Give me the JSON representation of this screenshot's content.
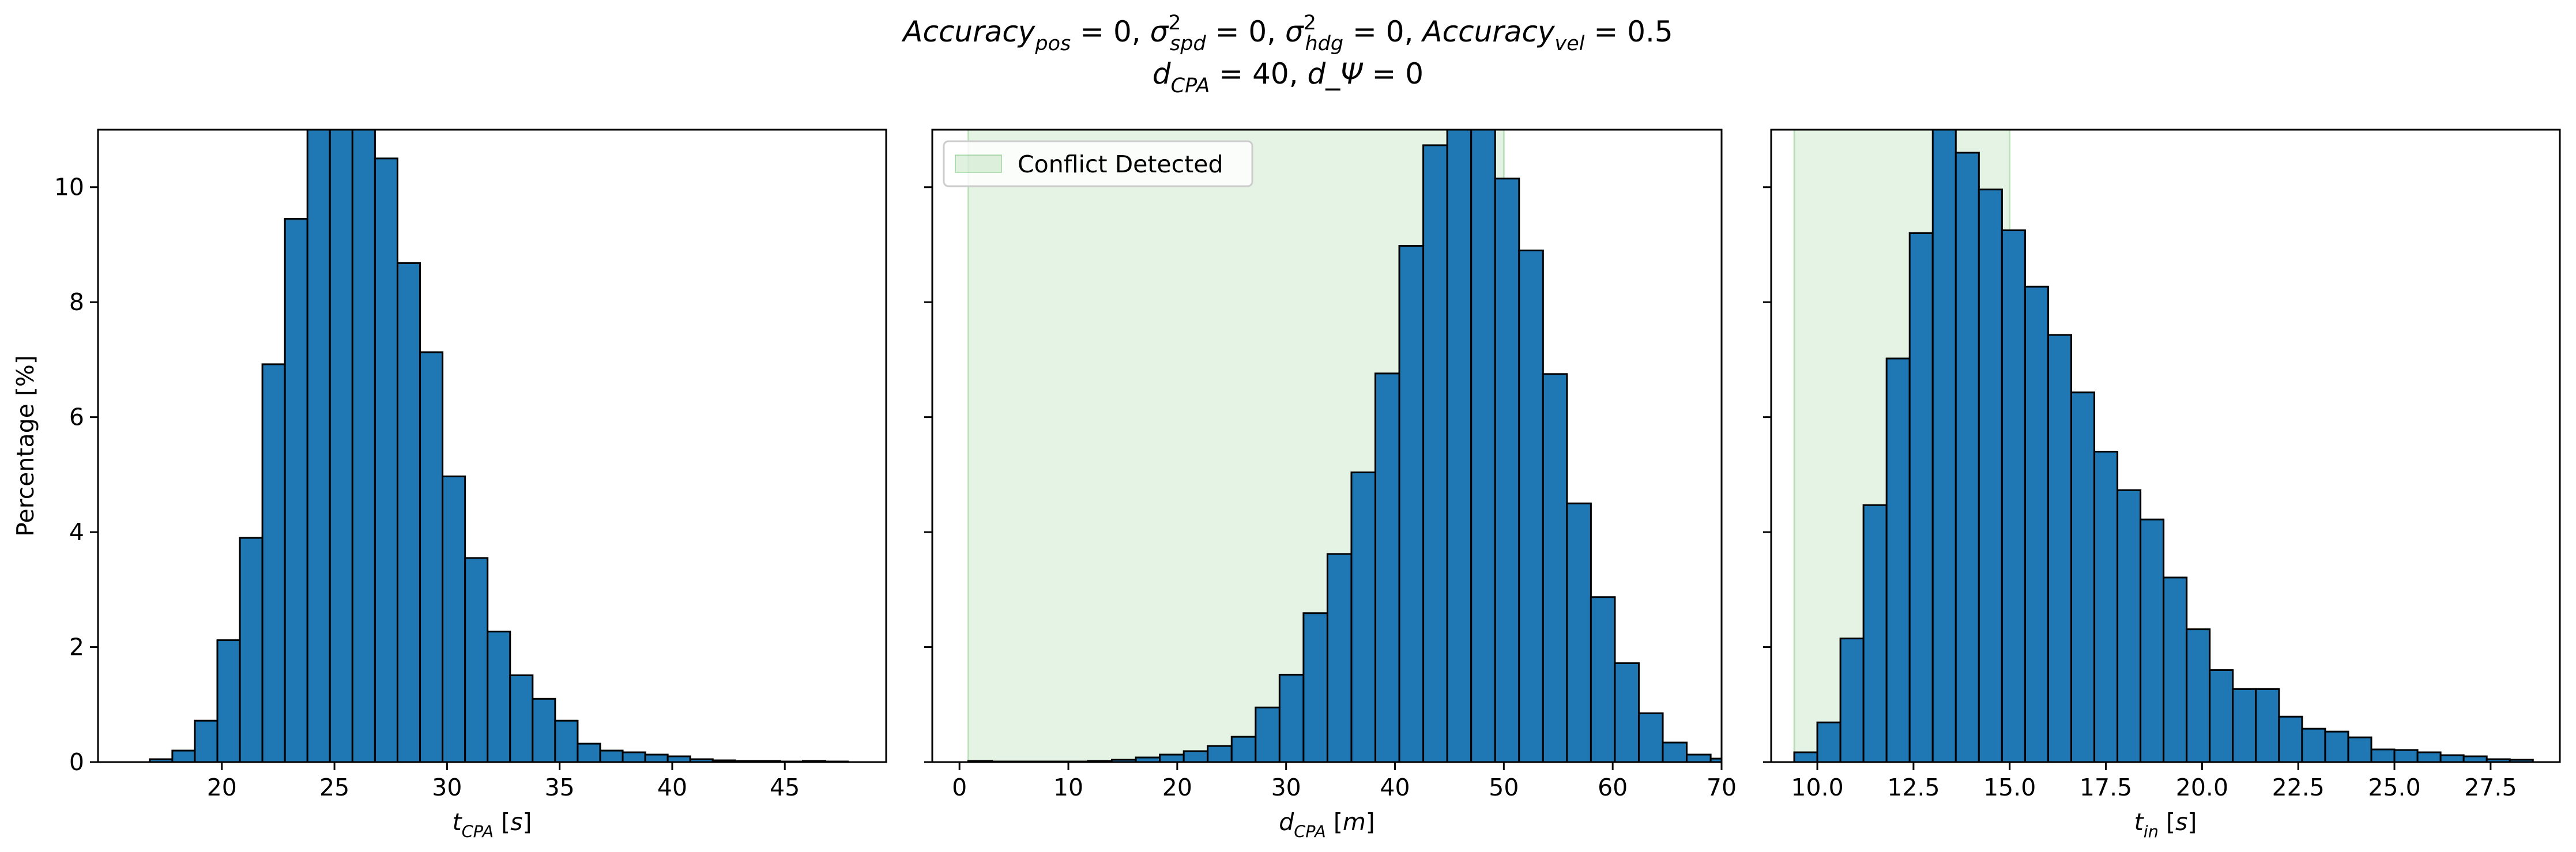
{
  "figure": {
    "title_line1": "Accuracy_pos = 0, σ²_spd = 0, σ²_hdg = 0, Accuracy_vel = 0.5",
    "title_line2": "d_CPA = 40, d_Ψ = 0"
  },
  "chart_data": [
    {
      "type": "bar",
      "subtype": "histogram",
      "xlabel": "t_CPA [s]",
      "ylabel": "Percentage [%]",
      "xlim": [
        14.5,
        49.5
      ],
      "ylim": [
        0,
        11
      ],
      "xticks": [
        20,
        25,
        30,
        35,
        40,
        45
      ],
      "xtick_labels": [
        "20",
        "25",
        "30",
        "35",
        "40",
        "45"
      ],
      "yticks": [
        0,
        2,
        4,
        6,
        8,
        10
      ],
      "ytick_labels": [
        "0",
        "2",
        "4",
        "6",
        "8",
        "10"
      ],
      "bar_color": "#1f77b4",
      "bin_start": 16.8,
      "bin_width": 1.0,
      "values": [
        0.05,
        0.2,
        0.72,
        2.12,
        3.9,
        6.92,
        9.45,
        11.2,
        11.6,
        11.4,
        10.5,
        8.68,
        7.13,
        4.97,
        3.55,
        2.27,
        1.51,
        1.1,
        0.72,
        0.32,
        0.2,
        0.17,
        0.13,
        0.1,
        0.05,
        0.03,
        0.02,
        0.02,
        0.01,
        0.02,
        0.01
      ]
    },
    {
      "type": "bar",
      "subtype": "histogram",
      "xlabel": "d_CPA [m]",
      "ylabel": "",
      "xlim": [
        -2.5,
        70
      ],
      "ylim": [
        0,
        11
      ],
      "xticks": [
        0,
        10,
        20,
        30,
        40,
        50,
        60,
        70
      ],
      "xtick_labels": [
        "0",
        "10",
        "20",
        "30",
        "40",
        "50",
        "60",
        "70"
      ],
      "yticks": [
        0,
        2,
        4,
        6,
        8,
        10
      ],
      "bar_color": "#1f77b4",
      "shaded_region": {
        "x0": 0.8,
        "x1": 50,
        "color": "#2ca02c",
        "opacity": 0.12
      },
      "legend": {
        "label": "Conflict Detected",
        "placement": "upper-left"
      },
      "bin_start": 0.8,
      "bin_width": 2.2,
      "values": [
        0.02,
        0.01,
        0.01,
        0.01,
        0.01,
        0.02,
        0.04,
        0.08,
        0.13,
        0.19,
        0.28,
        0.44,
        0.95,
        1.52,
        2.59,
        3.62,
        5.04,
        6.76,
        8.98,
        10.73,
        11.5,
        11.9,
        10.15,
        8.9,
        6.75,
        4.5,
        2.87,
        1.72,
        0.85,
        0.34,
        0.13,
        0.06,
        0.02
      ]
    },
    {
      "type": "bar",
      "subtype": "histogram",
      "xlabel": "t_in [s]",
      "ylabel": "",
      "xlim": [
        8.8,
        29.3
      ],
      "ylim": [
        0,
        11
      ],
      "xticks": [
        10.0,
        12.5,
        15.0,
        17.5,
        20.0,
        22.5,
        25.0,
        27.5
      ],
      "xtick_labels": [
        "10.0",
        "12.5",
        "15.0",
        "17.5",
        "20.0",
        "22.5",
        "25.0",
        "27.5"
      ],
      "yticks": [
        0,
        2,
        4,
        6,
        8,
        10
      ],
      "bar_color": "#1f77b4",
      "shaded_region": {
        "x0": 9.4,
        "x1": 15.0,
        "color": "#2ca02c",
        "opacity": 0.12
      },
      "bin_start": 9.4,
      "bin_width": 0.6,
      "values": [
        0.17,
        0.69,
        2.15,
        4.47,
        7.02,
        9.2,
        11.4,
        10.6,
        9.96,
        9.25,
        8.27,
        7.43,
        6.43,
        5.4,
        4.73,
        4.22,
        3.21,
        2.31,
        1.6,
        1.27,
        1.27,
        0.79,
        0.58,
        0.53,
        0.43,
        0.22,
        0.21,
        0.17,
        0.12,
        0.1,
        0.05,
        0.04
      ]
    }
  ]
}
